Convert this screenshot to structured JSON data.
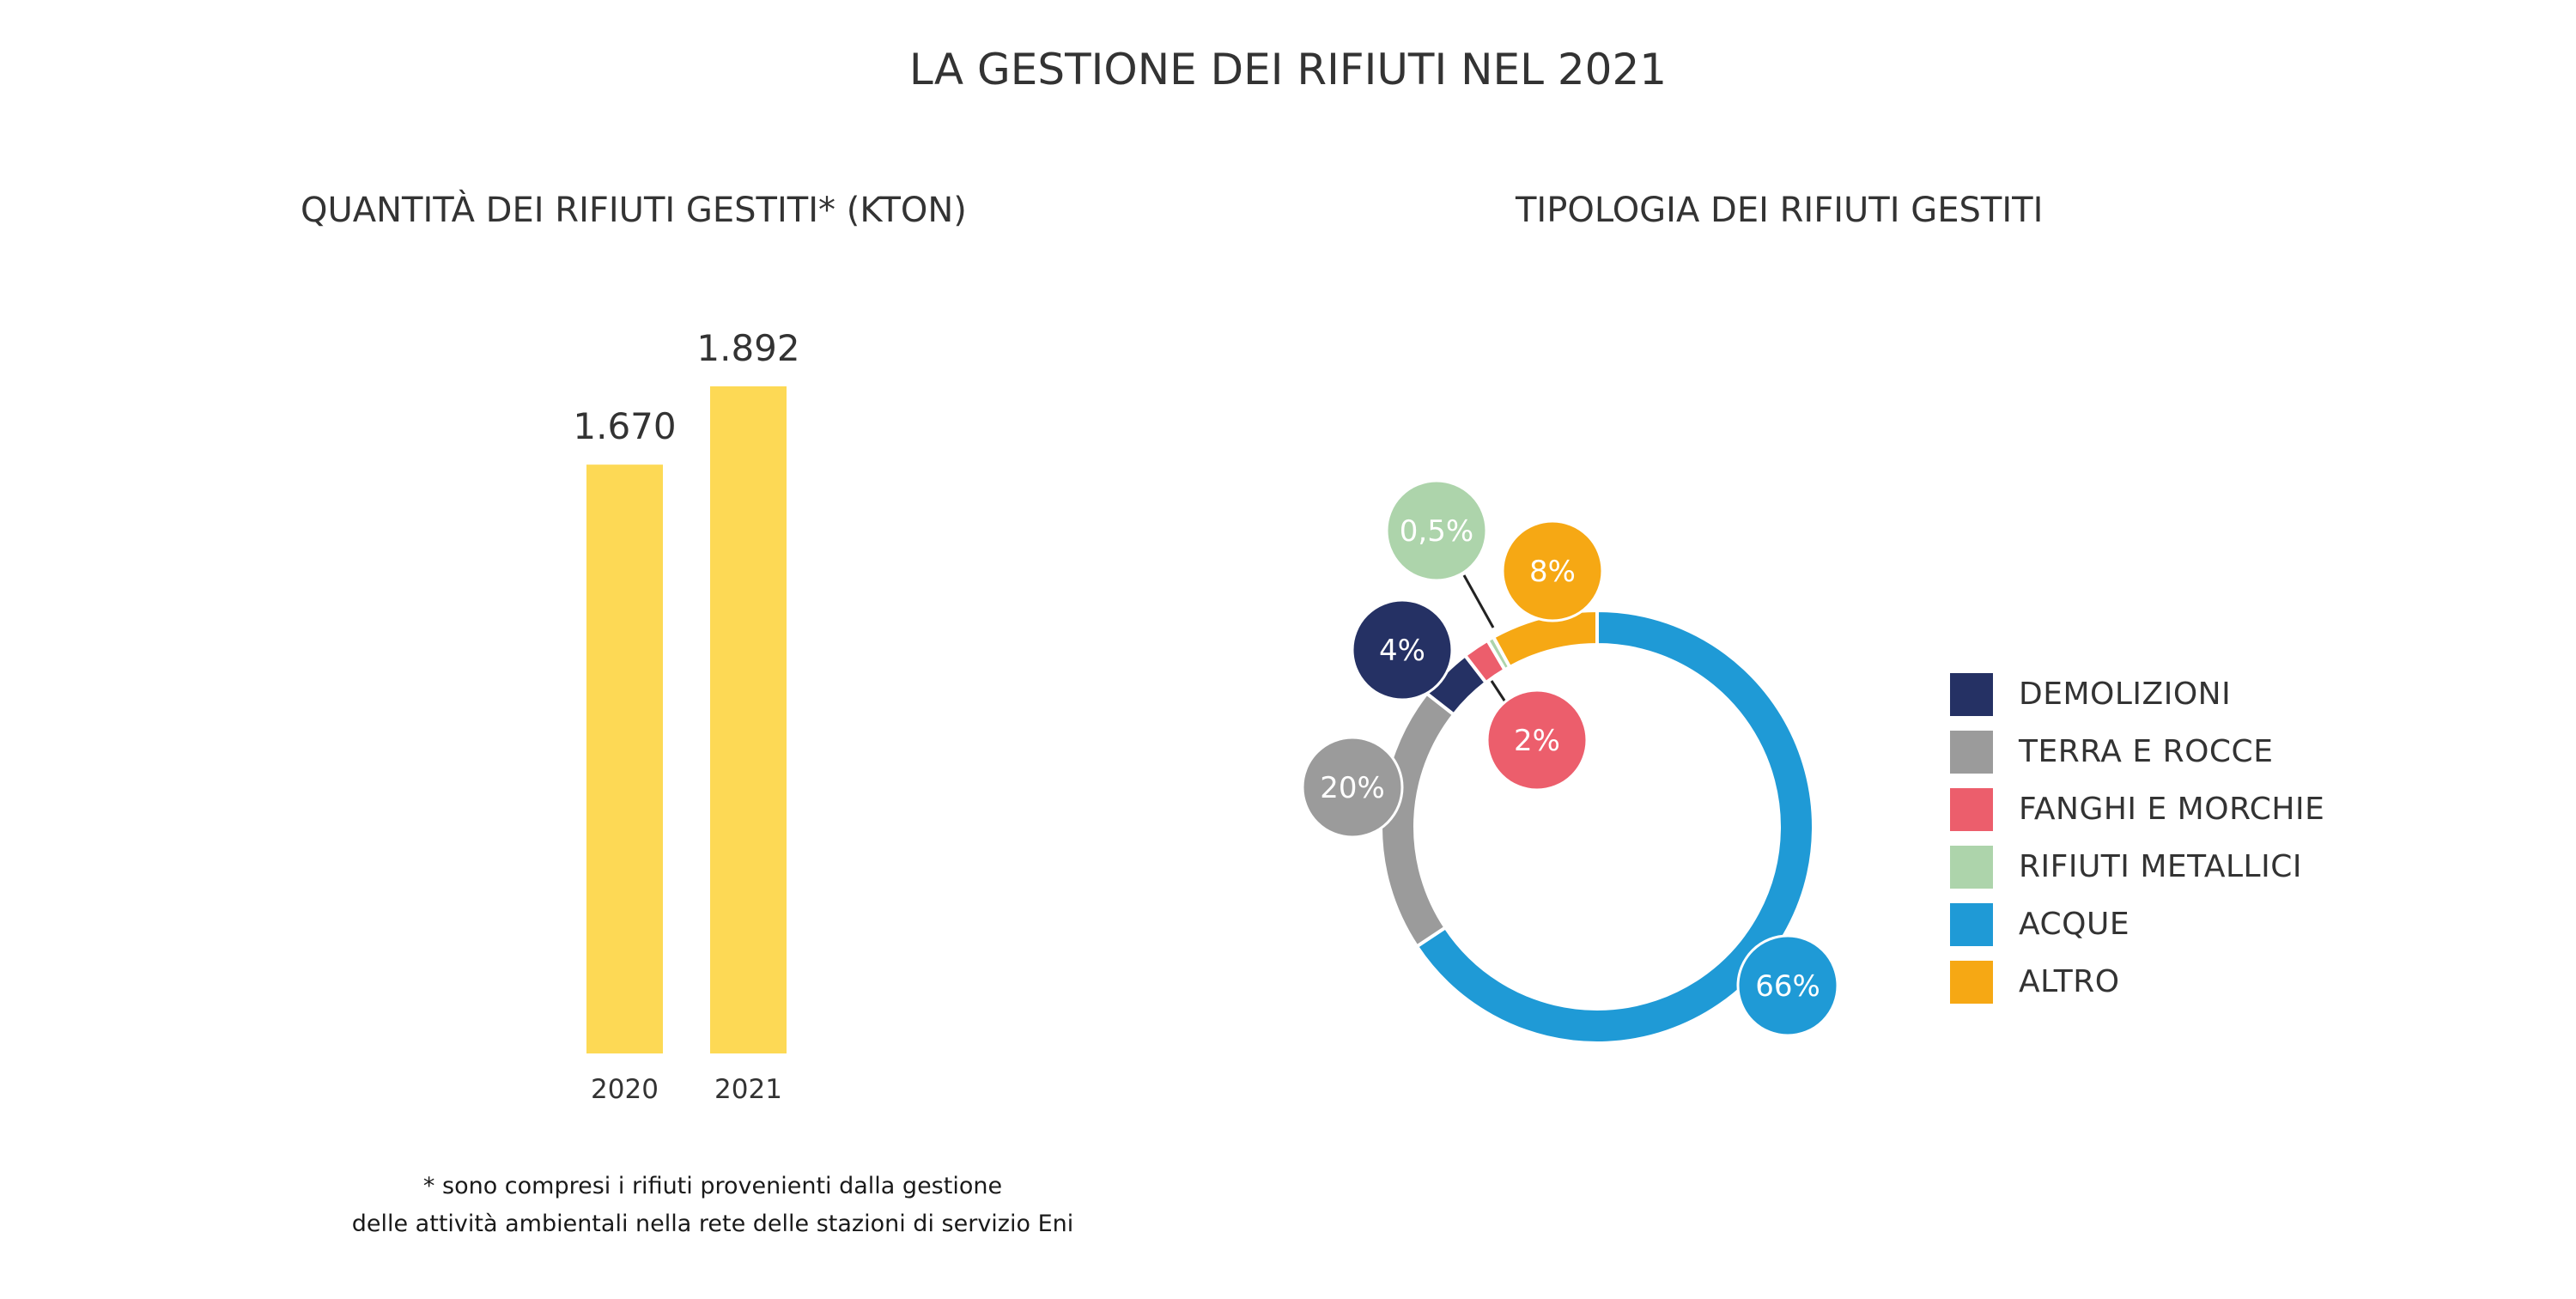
{
  "title": "LA GESTIONE DEI RIFIUTI NEL 2021",
  "footnote": {
    "line1": "* sono compresi i rifiuti provenienti dalla gestione",
    "line2": "delle attività ambientali nella rete delle stazioni di servizio Eni"
  },
  "chart_data": [
    {
      "type": "bar",
      "title": "QUANTITÀ DEI RIFIUTI GESTITI* (KTON)",
      "xlabel": "",
      "ylabel": "",
      "categories": [
        "2020",
        "2021"
      ],
      "values": [
        1670,
        1892
      ],
      "value_labels": [
        "1.670",
        "1.892"
      ],
      "ylim": [
        0,
        1892
      ],
      "grid": false,
      "color": "#FDD955"
    },
    {
      "type": "pie",
      "variant": "donut",
      "title": "TIPOLOGIA DEI RIFIUTI GESTITI",
      "legend_position": "right",
      "slices": [
        {
          "label": "ACQUE",
          "value": 66,
          "value_label": "66%",
          "color": "#1F9AD6"
        },
        {
          "label": "TERRA E ROCCE",
          "value": 20,
          "value_label": "20%",
          "color": "#9B9B9B"
        },
        {
          "label": "DEMOLIZIONI",
          "value": 4,
          "value_label": "4%",
          "color": "#253164"
        },
        {
          "label": "FANGHI E MORCHIE",
          "value": 2,
          "value_label": "2%",
          "color": "#EC5E6C"
        },
        {
          "label": "RIFIUTI METALLICI",
          "value": 0.5,
          "value_label": "0,5%",
          "color": "#ADD4AB"
        },
        {
          "label": "ALTRO",
          "value": 8,
          "value_label": "8%",
          "color": "#F6A814"
        }
      ],
      "legend_order": [
        "DEMOLIZIONI",
        "TERRA E ROCCE",
        "FANGHI E MORCHIE",
        "RIFIUTI METALLICI",
        "ACQUE",
        "ALTRO"
      ]
    }
  ]
}
